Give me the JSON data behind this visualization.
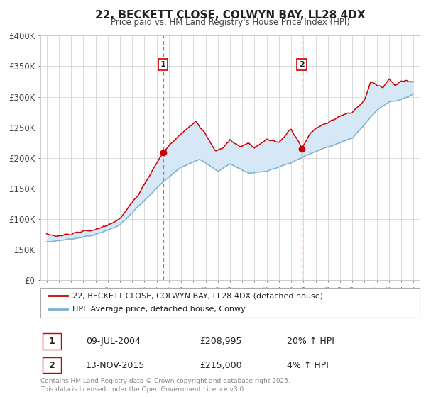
{
  "title": "22, BECKETT CLOSE, COLWYN BAY, LL28 4DX",
  "subtitle": "Price paid vs. HM Land Registry's House Price Index (HPI)",
  "legend_line1": "22, BECKETT CLOSE, COLWYN BAY, LL28 4DX (detached house)",
  "legend_line2": "HPI: Average price, detached house, Conwy",
  "sale1_date": "09-JUL-2004",
  "sale1_price": "£208,995",
  "sale1_hpi": "20% ↑ HPI",
  "sale1_year": 2004.52,
  "sale1_value": 208995,
  "sale2_date": "13-NOV-2015",
  "sale2_price": "£215,000",
  "sale2_hpi": "4% ↑ HPI",
  "sale2_year": 2015.87,
  "sale2_value": 215000,
  "footer": "Contains HM Land Registry data © Crown copyright and database right 2025.\nThis data is licensed under the Open Government Licence v3.0.",
  "ylim": [
    0,
    400000
  ],
  "yticks": [
    0,
    50000,
    100000,
    150000,
    200000,
    250000,
    300000,
    350000,
    400000
  ],
  "ytick_labels": [
    "£0",
    "£50K",
    "£100K",
    "£150K",
    "£200K",
    "£250K",
    "£300K",
    "£350K",
    "£400K"
  ],
  "xlim": [
    1994.5,
    2025.5
  ],
  "red_color": "#cc0000",
  "blue_color": "#7ab0d4",
  "fill_color": "#d6e8f5",
  "grid_color": "#cccccc",
  "vline_color": "#e06060",
  "bg_color": "#ffffff",
  "marker_box_edge": "#cc0000",
  "marker_box_face": "#ffffff"
}
